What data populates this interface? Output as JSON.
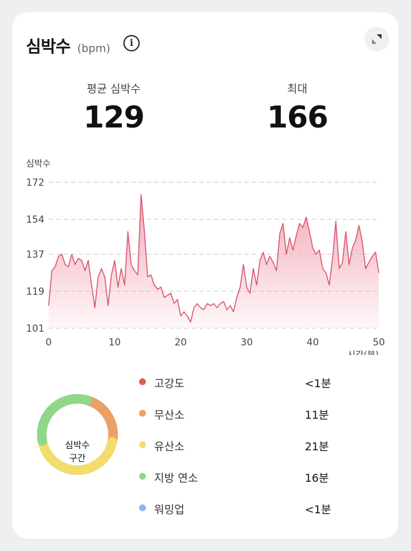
{
  "header": {
    "title": "심박수",
    "unit": "(bpm)",
    "info_icon": "info-icon",
    "expand_icon": "expand-icon"
  },
  "stats": {
    "avg_label": "평균 심박수",
    "avg_value": "129",
    "max_label": "최대",
    "max_value": "166"
  },
  "chart_data": {
    "type": "area",
    "ylabel": "심박수",
    "xlabel": "시간(분)",
    "yticks": [
      172,
      154,
      137,
      119,
      101
    ],
    "xticks": [
      0,
      10,
      20,
      30,
      40,
      50
    ],
    "ylim": [
      101,
      172
    ],
    "xlim": [
      0,
      50
    ],
    "grid": true,
    "color": "#d9536a",
    "fill_top": "#f2a5b3",
    "x": [
      0,
      0.5,
      1,
      1.5,
      2,
      2.5,
      3,
      3.5,
      4,
      4.5,
      5,
      5.5,
      6,
      6.5,
      7,
      7.5,
      8,
      8.5,
      9,
      9.5,
      10,
      10.5,
      11,
      11.5,
      12,
      12.5,
      13,
      13.5,
      14,
      14.5,
      15,
      15.5,
      16,
      16.5,
      17,
      17.5,
      18,
      18.5,
      19,
      19.5,
      20,
      20.5,
      21,
      21.5,
      22,
      22.5,
      23,
      23.5,
      24,
      24.5,
      25,
      25.5,
      26,
      26.5,
      27,
      27.5,
      28,
      28.5,
      29,
      29.5,
      30,
      30.5,
      31,
      31.5,
      32,
      32.5,
      33,
      33.5,
      34,
      34.5,
      35,
      35.5,
      36,
      36.5,
      37,
      37.5,
      38,
      38.5,
      39,
      39.5,
      40,
      40.5,
      41,
      41.5,
      42,
      42.5,
      43,
      43.5,
      44,
      44.5,
      45,
      45.5,
      46,
      46.5,
      47,
      47.5,
      48,
      48.5,
      49,
      49.5,
      50
    ],
    "values": [
      112,
      129,
      131,
      136,
      137,
      132,
      131,
      137,
      132,
      135,
      134,
      129,
      134,
      122,
      111,
      126,
      130,
      126,
      112,
      127,
      134,
      121,
      130,
      122,
      148,
      132,
      129,
      127,
      166,
      148,
      126,
      127,
      122,
      120,
      121,
      116,
      117,
      118,
      113,
      115,
      107,
      109,
      107,
      104,
      111,
      113,
      111,
      110,
      113,
      112,
      113,
      111,
      113,
      114,
      110,
      112,
      109,
      116,
      121,
      132,
      121,
      118,
      130,
      122,
      134,
      138,
      132,
      136,
      133,
      129,
      147,
      152,
      137,
      145,
      139,
      146,
      152,
      150,
      155,
      148,
      140,
      137,
      139,
      130,
      128,
      122,
      135,
      153,
      130,
      133,
      148,
      132,
      140,
      144,
      151,
      143,
      130,
      133,
      136,
      138,
      128
    ]
  },
  "zones": {
    "center_label_line1": "심박수",
    "center_label_line2": "구간",
    "items": [
      {
        "name": "고강도",
        "duration": "<1분",
        "color": "#e05b4a"
      },
      {
        "name": "무산소",
        "duration": "11분",
        "color": "#eba066"
      },
      {
        "name": "유산소",
        "duration": "21분",
        "color": "#f3dc6e"
      },
      {
        "name": "지방 연소",
        "duration": "16분",
        "color": "#8fd789"
      },
      {
        "name": "워밍업",
        "duration": "<1분",
        "color": "#86b5ee"
      }
    ],
    "donut_minutes": [
      0,
      11,
      21,
      16,
      0
    ]
  }
}
